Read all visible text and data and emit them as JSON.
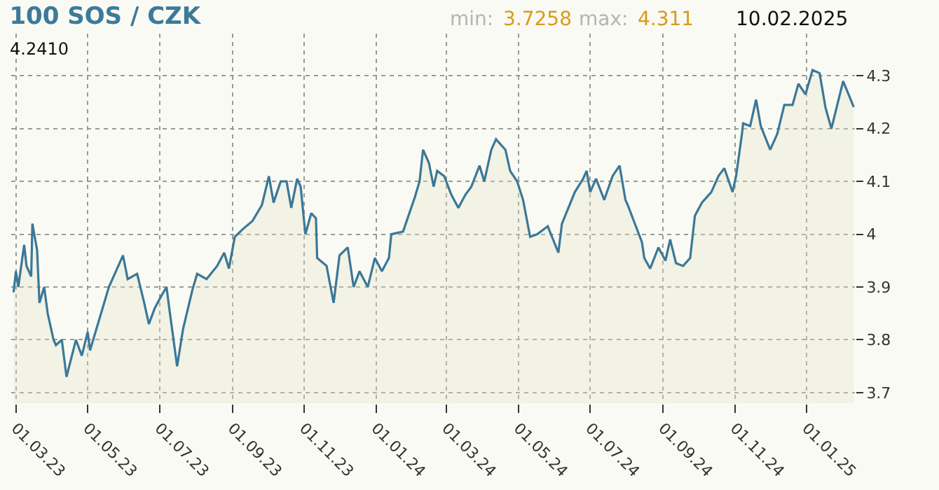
{
  "chart_data": {
    "type": "area",
    "title": "100 SOS / CZK",
    "annotations": [
      "min:",
      "3.7258",
      "max:",
      "4.311",
      "10.02.2025",
      "4.2410"
    ],
    "x": [
      "2023-02-27",
      "2023-03-01",
      "2023-03-03",
      "2023-03-08",
      "2023-03-10",
      "2023-03-14",
      "2023-03-15",
      "2023-03-19",
      "2023-03-21",
      "2023-03-25",
      "2023-03-28",
      "2023-04-02",
      "2023-04-04",
      "2023-04-09",
      "2023-04-13",
      "2023-04-21",
      "2023-04-26",
      "2023-05-01",
      "2023-05-03",
      "2023-05-19",
      "2023-05-31",
      "2023-06-04",
      "2023-06-12",
      "2023-06-18",
      "2023-06-22",
      "2023-06-27",
      "2023-07-03",
      "2023-07-07",
      "2023-07-09",
      "2023-07-16",
      "2023-07-21",
      "2023-07-29",
      "2023-08-02",
      "2023-08-10",
      "2023-08-19",
      "2023-08-25",
      "2023-08-29",
      "2023-09-03",
      "2023-09-10",
      "2023-09-18",
      "2023-09-26",
      "2023-10-02",
      "2023-10-06",
      "2023-10-12",
      "2023-10-17",
      "2023-10-21",
      "2023-10-26",
      "2023-10-29",
      "2023-11-02",
      "2023-11-07",
      "2023-11-11",
      "2023-11-12",
      "2023-11-20",
      "2023-11-26",
      "2023-12-01",
      "2023-12-08",
      "2023-12-13",
      "2023-12-18",
      "2023-12-25",
      "2023-12-31",
      "2024-01-06",
      "2024-01-12",
      "2024-01-14",
      "2024-01-24",
      "2024-02-03",
      "2024-02-07",
      "2024-02-10",
      "2024-02-15",
      "2024-02-19",
      "2024-02-22",
      "2024-02-28",
      "2024-03-05",
      "2024-03-11",
      "2024-03-17",
      "2024-03-22",
      "2024-03-29",
      "2024-04-02",
      "2024-04-08",
      "2024-04-12",
      "2024-04-20",
      "2024-04-24",
      "2024-04-30",
      "2024-05-05",
      "2024-05-11",
      "2024-05-17",
      "2024-05-26",
      "2024-06-04",
      "2024-06-07",
      "2024-06-18",
      "2024-06-25",
      "2024-06-28",
      "2024-07-01",
      "2024-07-06",
      "2024-07-13",
      "2024-07-20",
      "2024-07-26",
      "2024-07-31",
      "2024-08-02",
      "2024-08-08",
      "2024-08-14",
      "2024-08-16",
      "2024-08-21",
      "2024-08-28",
      "2024-09-03",
      "2024-09-07",
      "2024-09-12",
      "2024-09-18",
      "2024-09-24",
      "2024-09-28",
      "2024-10-04",
      "2024-10-12",
      "2024-10-18",
      "2024-10-23",
      "2024-10-30",
      "2024-11-02",
      "2024-11-07",
      "2024-11-08",
      "2024-11-14",
      "2024-11-19",
      "2024-11-23",
      "2024-12-01",
      "2024-12-07",
      "2024-12-13",
      "2024-12-20",
      "2024-12-25",
      "2024-12-31",
      "2025-01-06",
      "2025-01-12",
      "2025-01-17",
      "2025-01-22",
      "2025-02-01",
      "2025-02-10"
    ],
    "series": [
      {
        "color": "#3b7897",
        "values": [
          3.89,
          3.93,
          3.9,
          3.98,
          3.94,
          3.92,
          4.02,
          3.97,
          3.87,
          3.9,
          3.85,
          3.8,
          3.79,
          3.8,
          3.73,
          3.8,
          3.77,
          3.815,
          3.78,
          3.9,
          3.96,
          3.915,
          3.925,
          3.87,
          3.83,
          3.86,
          3.885,
          3.9,
          3.865,
          3.75,
          3.82,
          3.895,
          3.925,
          3.915,
          3.94,
          3.965,
          3.935,
          3.995,
          4.01,
          4.025,
          4.055,
          4.11,
          4.06,
          4.1,
          4.1,
          4.05,
          4.105,
          4.09,
          4.0,
          4.04,
          4.03,
          3.955,
          3.94,
          3.87,
          3.96,
          3.975,
          3.9,
          3.93,
          3.9,
          3.955,
          3.93,
          3.955,
          4.0,
          4.005,
          4.07,
          4.1,
          4.16,
          4.135,
          4.09,
          4.12,
          4.11,
          4.075,
          4.05,
          4.075,
          4.09,
          4.13,
          4.1,
          4.16,
          4.18,
          4.16,
          4.12,
          4.1,
          4.065,
          3.995,
          4.0,
          4.015,
          3.965,
          4.02,
          4.08,
          4.105,
          4.12,
          4.08,
          4.105,
          4.065,
          4.11,
          4.13,
          4.065,
          4.055,
          4.02,
          3.985,
          3.955,
          3.935,
          3.975,
          3.95,
          3.99,
          3.945,
          3.94,
          3.955,
          4.035,
          4.06,
          4.08,
          4.11,
          4.125,
          4.08,
          4.11,
          4.19,
          4.21,
          4.205,
          4.255,
          4.205,
          4.16,
          4.19,
          4.245,
          4.245,
          4.285,
          4.265,
          4.311,
          4.305,
          4.24,
          4.2,
          4.29,
          4.241
        ]
      }
    ],
    "xlim": [
      "2023-02-25",
      "2025-02-11"
    ],
    "xticks": [
      {
        "value": "2023-03-01",
        "label": "01.03.23"
      },
      {
        "value": "2023-05-01",
        "label": "01.05.23"
      },
      {
        "value": "2023-07-01",
        "label": "01.07.23"
      },
      {
        "value": "2023-09-01",
        "label": "01.09.23"
      },
      {
        "value": "2023-11-01",
        "label": "01.11.23"
      },
      {
        "value": "2024-01-01",
        "label": "01.01.24"
      },
      {
        "value": "2024-03-01",
        "label": "01.03.24"
      },
      {
        "value": "2024-05-01",
        "label": "01.05.24"
      },
      {
        "value": "2024-07-01",
        "label": "01.07.24"
      },
      {
        "value": "2024-09-01",
        "label": "01.09.24"
      },
      {
        "value": "2024-11-01",
        "label": "01.11.24"
      },
      {
        "value": "2025-01-01",
        "label": "01.01.25"
      }
    ],
    "ylim": [
      3.68,
      4.38
    ],
    "yticks": [
      3.7,
      3.8,
      3.9,
      4,
      4.1,
      4.2,
      4.3
    ],
    "grid": true,
    "marker": "none",
    "line_style": "solid"
  }
}
